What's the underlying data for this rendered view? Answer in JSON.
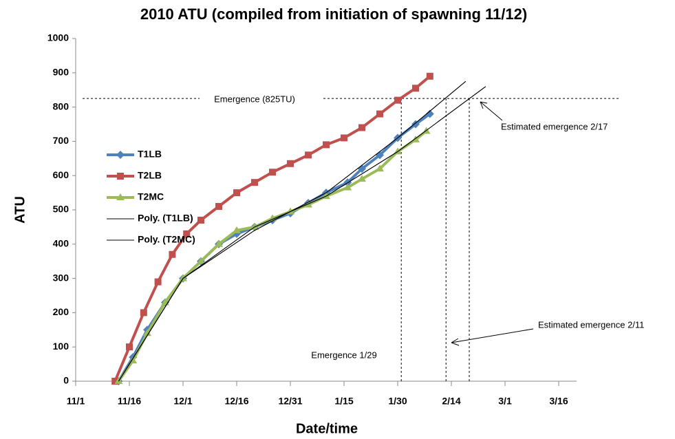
{
  "chart_data": {
    "type": "line",
    "title": "2010 ATU (compiled from initiation of spawning 11/12)",
    "x_label": "Date/time",
    "y_label": "ATU",
    "xlim": [
      0,
      140
    ],
    "xticks": [
      {
        "value": 0,
        "label": "11/1"
      },
      {
        "value": 15,
        "label": "11/16"
      },
      {
        "value": 30,
        "label": "12/1"
      },
      {
        "value": 45,
        "label": "12/16"
      },
      {
        "value": 60,
        "label": "12/31"
      },
      {
        "value": 75,
        "label": "1/15"
      },
      {
        "value": 90,
        "label": "1/30"
      },
      {
        "value": 105,
        "label": "2/14"
      },
      {
        "value": 120,
        "label": "3/1"
      },
      {
        "value": 135,
        "label": "3/16"
      }
    ],
    "ylim": [
      0,
      1000
    ],
    "yticks": [
      0,
      100,
      200,
      300,
      400,
      500,
      600,
      700,
      800,
      900,
      1000
    ],
    "legend": "left",
    "series": [
      {
        "name": "T1LB",
        "color": "#4f81bd",
        "marker": "diamond",
        "x": [
          12,
          16,
          20,
          25,
          30,
          35,
          40,
          45,
          50,
          55,
          60,
          65,
          70,
          76,
          80,
          85,
          90,
          95,
          99
        ],
        "values": [
          0,
          70,
          150,
          230,
          300,
          350,
          400,
          430,
          450,
          470,
          490,
          520,
          550,
          580,
          620,
          660,
          710,
          750,
          780
        ]
      },
      {
        "name": "T2LB",
        "color": "#c0504d",
        "marker": "square",
        "x": [
          11,
          15,
          19,
          23,
          27,
          31,
          35,
          40,
          45,
          50,
          55,
          60,
          65,
          70,
          75,
          80,
          85,
          90,
          95,
          99
        ],
        "values": [
          0,
          100,
          200,
          290,
          370,
          430,
          470,
          510,
          550,
          580,
          610,
          635,
          660,
          690,
          710,
          740,
          780,
          820,
          855,
          890
        ]
      },
      {
        "name": "T2MC",
        "color": "#9bbb59",
        "marker": "triangle",
        "x": [
          12,
          16,
          20,
          25,
          30,
          35,
          40,
          45,
          50,
          55,
          60,
          65,
          70,
          76,
          80,
          85,
          90,
          95,
          98
        ],
        "values": [
          0,
          60,
          140,
          230,
          300,
          350,
          400,
          440,
          450,
          475,
          495,
          515,
          540,
          565,
          590,
          620,
          670,
          705,
          730
        ]
      },
      {
        "name": "Poly. (T1LB)",
        "color": "#000000",
        "marker": "none",
        "x": [
          12,
          30,
          50,
          70,
          90,
          109
        ],
        "values": [
          0,
          300,
          440,
          550,
          710,
          875
        ]
      },
      {
        "name": "Poly. (T2MC)",
        "color": "#000000",
        "marker": "none",
        "x": [
          12,
          30,
          50,
          70,
          90,
          114.6
        ],
        "values": [
          0,
          300,
          450,
          540,
          670,
          860
        ]
      }
    ],
    "hline": {
      "value": 825,
      "label": "Emergence (825TU)"
    },
    "vlines": [
      {
        "value": 91,
        "label": "Emergence 1/29"
      },
      {
        "value": 103.5,
        "label": "Estimated emergence 2/11"
      },
      {
        "value": 110,
        "label": "Estimated emergence 2/17"
      }
    ]
  }
}
